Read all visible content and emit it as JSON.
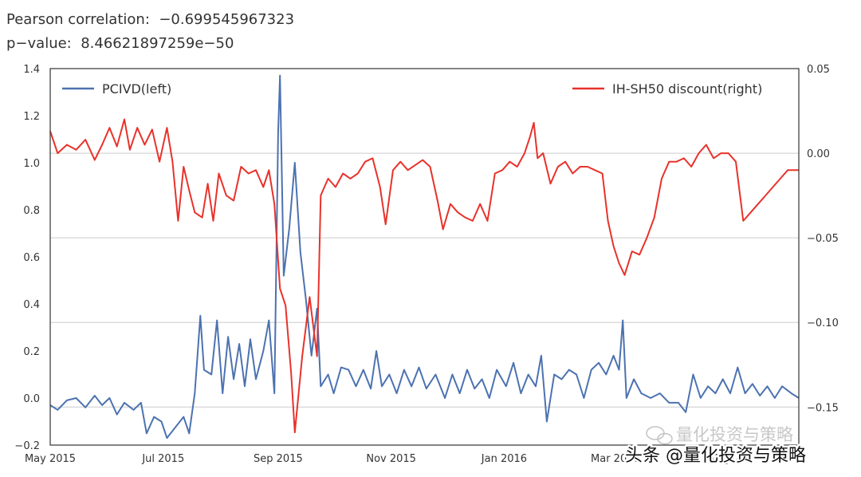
{
  "stats": {
    "pearson_label": "Pearson correlation:",
    "pearson_value": "−0.699545967323",
    "pvalue_label": "p−value:",
    "pvalue_value": "8.46621897259e−50"
  },
  "colors": {
    "left_series": "#4c72b0",
    "right_series": "#e8322b",
    "grid": "#cccccc",
    "axis": "#333333"
  },
  "watermark": {
    "text_light": "量化投资与策略",
    "text_dark": "头条 @量化投资与策略"
  },
  "chart_data": {
    "type": "line",
    "grid": "horizontal",
    "legend": [
      {
        "label": "PCIVD(left)",
        "placement": "top-left"
      },
      {
        "label": "IH-SH50 discount(right)",
        "placement": "top-right"
      }
    ],
    "x_range": [
      "2015-05-01",
      "2016-06-08"
    ],
    "x_ticks": [
      {
        "label": "May 2015",
        "date": "2015-05-01"
      },
      {
        "label": "Jul 2015",
        "date": "2015-07-01"
      },
      {
        "label": "Sep 2015",
        "date": "2015-09-01"
      },
      {
        "label": "Nov 2015",
        "date": "2015-11-01"
      },
      {
        "label": "Jan 2016",
        "date": "2016-01-01"
      },
      {
        "label": "Mar 2016",
        "date": "2016-03-01"
      },
      {
        "label": "May 20",
        "date": "2016-05-01"
      }
    ],
    "left_axis": {
      "ylim": [
        -0.2,
        1.4
      ],
      "ticks": [
        {
          "value": -0.2,
          "label": "−0.2"
        },
        {
          "value": 0.0,
          "label": "0.0"
        },
        {
          "value": 0.2,
          "label": "0.2"
        },
        {
          "value": 0.4,
          "label": "0.4"
        },
        {
          "value": 0.6,
          "label": "0.6"
        },
        {
          "value": 0.8,
          "label": "0.8"
        },
        {
          "value": 1.0,
          "label": "1.0"
        },
        {
          "value": 1.2,
          "label": "1.2"
        },
        {
          "value": 1.4,
          "label": "1.4"
        }
      ]
    },
    "right_axis": {
      "ylim": [
        -0.1725,
        0.05
      ],
      "ticks": [
        {
          "value": 0.05,
          "label": "0.05"
        },
        {
          "value": 0.0,
          "label": "0.00"
        },
        {
          "value": -0.05,
          "label": "−0.05"
        },
        {
          "value": -0.1,
          "label": "−0.10"
        },
        {
          "value": -0.15,
          "label": "−0.15"
        }
      ]
    },
    "series": [
      {
        "name": "PCIVD(left)",
        "axis": "left",
        "points": [
          [
            "2015-05-01",
            -0.03
          ],
          [
            "2015-05-05",
            -0.05
          ],
          [
            "2015-05-10",
            -0.01
          ],
          [
            "2015-05-15",
            0.0
          ],
          [
            "2015-05-20",
            -0.04
          ],
          [
            "2015-05-25",
            0.01
          ],
          [
            "2015-05-29",
            -0.03
          ],
          [
            "2015-06-02",
            0.0
          ],
          [
            "2015-06-06",
            -0.07
          ],
          [
            "2015-06-10",
            -0.02
          ],
          [
            "2015-06-15",
            -0.05
          ],
          [
            "2015-06-19",
            -0.02
          ],
          [
            "2015-06-22",
            -0.15
          ],
          [
            "2015-06-26",
            -0.08
          ],
          [
            "2015-06-30",
            -0.1
          ],
          [
            "2015-07-03",
            -0.17
          ],
          [
            "2015-07-08",
            -0.12
          ],
          [
            "2015-07-12",
            -0.08
          ],
          [
            "2015-07-15",
            -0.15
          ],
          [
            "2015-07-18",
            0.02
          ],
          [
            "2015-07-21",
            0.35
          ],
          [
            "2015-07-23",
            0.12
          ],
          [
            "2015-07-27",
            0.1
          ],
          [
            "2015-07-30",
            0.33
          ],
          [
            "2015-08-02",
            0.02
          ],
          [
            "2015-08-05",
            0.26
          ],
          [
            "2015-08-08",
            0.08
          ],
          [
            "2015-08-11",
            0.23
          ],
          [
            "2015-08-14",
            0.05
          ],
          [
            "2015-08-17",
            0.25
          ],
          [
            "2015-08-20",
            0.08
          ],
          [
            "2015-08-24",
            0.2
          ],
          [
            "2015-08-27",
            0.33
          ],
          [
            "2015-08-30",
            0.02
          ],
          [
            "2015-09-01",
            1.13
          ],
          [
            "2015-09-02",
            1.37
          ],
          [
            "2015-09-04",
            0.52
          ],
          [
            "2015-09-07",
            0.72
          ],
          [
            "2015-09-10",
            1.0
          ],
          [
            "2015-09-13",
            0.62
          ],
          [
            "2015-09-16",
            0.42
          ],
          [
            "2015-09-19",
            0.18
          ],
          [
            "2015-09-22",
            0.38
          ],
          [
            "2015-09-24",
            0.05
          ],
          [
            "2015-09-28",
            0.1
          ],
          [
            "2015-10-01",
            0.02
          ],
          [
            "2015-10-05",
            0.13
          ],
          [
            "2015-10-09",
            0.12
          ],
          [
            "2015-10-13",
            0.05
          ],
          [
            "2015-10-17",
            0.12
          ],
          [
            "2015-10-21",
            0.04
          ],
          [
            "2015-10-24",
            0.2
          ],
          [
            "2015-10-27",
            0.05
          ],
          [
            "2015-10-31",
            0.1
          ],
          [
            "2015-11-04",
            0.02
          ],
          [
            "2015-11-08",
            0.12
          ],
          [
            "2015-11-12",
            0.05
          ],
          [
            "2015-11-16",
            0.13
          ],
          [
            "2015-11-20",
            0.04
          ],
          [
            "2015-11-25",
            0.1
          ],
          [
            "2015-11-30",
            0.0
          ],
          [
            "2015-12-04",
            0.1
          ],
          [
            "2015-12-08",
            0.02
          ],
          [
            "2015-12-12",
            0.12
          ],
          [
            "2015-12-16",
            0.04
          ],
          [
            "2015-12-20",
            0.08
          ],
          [
            "2015-12-24",
            0.0
          ],
          [
            "2015-12-28",
            0.12
          ],
          [
            "2016-01-02",
            0.05
          ],
          [
            "2016-01-06",
            0.15
          ],
          [
            "2016-01-10",
            0.02
          ],
          [
            "2016-01-14",
            0.1
          ],
          [
            "2016-01-18",
            0.05
          ],
          [
            "2016-01-21",
            0.18
          ],
          [
            "2016-01-24",
            -0.1
          ],
          [
            "2016-01-28",
            0.1
          ],
          [
            "2016-02-01",
            0.08
          ],
          [
            "2016-02-05",
            0.12
          ],
          [
            "2016-02-09",
            0.1
          ],
          [
            "2016-02-13",
            0.0
          ],
          [
            "2016-02-17",
            0.12
          ],
          [
            "2016-02-21",
            0.15
          ],
          [
            "2016-02-25",
            0.1
          ],
          [
            "2016-02-29",
            0.18
          ],
          [
            "2016-03-03",
            0.12
          ],
          [
            "2016-03-05",
            0.33
          ],
          [
            "2016-03-07",
            0.0
          ],
          [
            "2016-03-11",
            0.08
          ],
          [
            "2016-03-15",
            0.02
          ],
          [
            "2016-03-20",
            0.0
          ],
          [
            "2016-03-25",
            0.02
          ],
          [
            "2016-03-30",
            -0.02
          ],
          [
            "2016-04-04",
            -0.02
          ],
          [
            "2016-04-08",
            -0.06
          ],
          [
            "2016-04-12",
            0.1
          ],
          [
            "2016-04-16",
            0.0
          ],
          [
            "2016-04-20",
            0.05
          ],
          [
            "2016-04-24",
            0.02
          ],
          [
            "2016-04-28",
            0.08
          ],
          [
            "2016-05-02",
            0.02
          ],
          [
            "2016-05-06",
            0.13
          ],
          [
            "2016-05-10",
            0.02
          ],
          [
            "2016-05-14",
            0.06
          ],
          [
            "2016-05-18",
            0.01
          ],
          [
            "2016-05-22",
            0.05
          ],
          [
            "2016-05-26",
            0.0
          ],
          [
            "2016-05-30",
            0.05
          ],
          [
            "2016-06-04",
            0.02
          ],
          [
            "2016-06-08",
            0.0
          ]
        ]
      },
      {
        "name": "IH-SH50 discount(right)",
        "axis": "right",
        "points": [
          [
            "2015-05-01",
            0.013
          ],
          [
            "2015-05-05",
            0.0
          ],
          [
            "2015-05-10",
            0.005
          ],
          [
            "2015-05-15",
            0.002
          ],
          [
            "2015-05-20",
            0.008
          ],
          [
            "2015-05-25",
            -0.004
          ],
          [
            "2015-05-29",
            0.005
          ],
          [
            "2015-06-02",
            0.015
          ],
          [
            "2015-06-06",
            0.004
          ],
          [
            "2015-06-10",
            0.02
          ],
          [
            "2015-06-13",
            0.002
          ],
          [
            "2015-06-17",
            0.015
          ],
          [
            "2015-06-21",
            0.005
          ],
          [
            "2015-06-25",
            0.014
          ],
          [
            "2015-06-29",
            -0.005
          ],
          [
            "2015-07-03",
            0.015
          ],
          [
            "2015-07-06",
            -0.005
          ],
          [
            "2015-07-09",
            -0.04
          ],
          [
            "2015-07-12",
            -0.008
          ],
          [
            "2015-07-15",
            -0.022
          ],
          [
            "2015-07-18",
            -0.035
          ],
          [
            "2015-07-22",
            -0.038
          ],
          [
            "2015-07-25",
            -0.018
          ],
          [
            "2015-07-28",
            -0.04
          ],
          [
            "2015-07-31",
            -0.012
          ],
          [
            "2015-08-04",
            -0.025
          ],
          [
            "2015-08-08",
            -0.028
          ],
          [
            "2015-08-12",
            -0.008
          ],
          [
            "2015-08-16",
            -0.012
          ],
          [
            "2015-08-20",
            -0.01
          ],
          [
            "2015-08-24",
            -0.02
          ],
          [
            "2015-08-27",
            -0.01
          ],
          [
            "2015-08-30",
            -0.03
          ],
          [
            "2015-09-02",
            -0.08
          ],
          [
            "2015-09-05",
            -0.09
          ],
          [
            "2015-09-08",
            -0.13
          ],
          [
            "2015-09-10",
            -0.165
          ],
          [
            "2015-09-14",
            -0.12
          ],
          [
            "2015-09-18",
            -0.085
          ],
          [
            "2015-09-22",
            -0.12
          ],
          [
            "2015-09-24",
            -0.025
          ],
          [
            "2015-09-28",
            -0.015
          ],
          [
            "2015-10-02",
            -0.02
          ],
          [
            "2015-10-06",
            -0.012
          ],
          [
            "2015-10-10",
            -0.015
          ],
          [
            "2015-10-14",
            -0.012
          ],
          [
            "2015-10-18",
            -0.005
          ],
          [
            "2015-10-22",
            -0.003
          ],
          [
            "2015-10-26",
            -0.02
          ],
          [
            "2015-10-29",
            -0.042
          ],
          [
            "2015-11-02",
            -0.01
          ],
          [
            "2015-11-06",
            -0.005
          ],
          [
            "2015-11-10",
            -0.01
          ],
          [
            "2015-11-14",
            -0.007
          ],
          [
            "2015-11-18",
            -0.004
          ],
          [
            "2015-11-22",
            -0.008
          ],
          [
            "2015-11-26",
            -0.028
          ],
          [
            "2015-11-29",
            -0.045
          ],
          [
            "2015-12-03",
            -0.03
          ],
          [
            "2015-12-07",
            -0.035
          ],
          [
            "2015-12-11",
            -0.038
          ],
          [
            "2015-12-15",
            -0.04
          ],
          [
            "2015-12-19",
            -0.03
          ],
          [
            "2015-12-23",
            -0.04
          ],
          [
            "2015-12-27",
            -0.012
          ],
          [
            "2015-12-31",
            -0.01
          ],
          [
            "2016-01-04",
            -0.005
          ],
          [
            "2016-01-08",
            -0.008
          ],
          [
            "2016-01-12",
            0.0
          ],
          [
            "2016-01-15",
            0.01
          ],
          [
            "2016-01-17",
            0.018
          ],
          [
            "2016-01-19",
            -0.003
          ],
          [
            "2016-01-22",
            0.0
          ],
          [
            "2016-01-26",
            -0.018
          ],
          [
            "2016-01-30",
            -0.008
          ],
          [
            "2016-02-03",
            -0.005
          ],
          [
            "2016-02-07",
            -0.012
          ],
          [
            "2016-02-11",
            -0.008
          ],
          [
            "2016-02-15",
            -0.008
          ],
          [
            "2016-02-19",
            -0.01
          ],
          [
            "2016-02-23",
            -0.012
          ],
          [
            "2016-02-26",
            -0.04
          ],
          [
            "2016-02-29",
            -0.055
          ],
          [
            "2016-03-03",
            -0.065
          ],
          [
            "2016-03-06",
            -0.072
          ],
          [
            "2016-03-10",
            -0.058
          ],
          [
            "2016-03-14",
            -0.06
          ],
          [
            "2016-03-18",
            -0.05
          ],
          [
            "2016-03-22",
            -0.038
          ],
          [
            "2016-03-26",
            -0.015
          ],
          [
            "2016-03-30",
            -0.005
          ],
          [
            "2016-04-03",
            -0.005
          ],
          [
            "2016-04-07",
            -0.003
          ],
          [
            "2016-04-11",
            -0.008
          ],
          [
            "2016-04-15",
            0.0
          ],
          [
            "2016-04-19",
            0.005
          ],
          [
            "2016-04-23",
            -0.003
          ],
          [
            "2016-04-27",
            0.0
          ],
          [
            "2016-05-01",
            0.0
          ],
          [
            "2016-05-05",
            -0.005
          ],
          [
            "2016-05-09",
            -0.04
          ],
          [
            "2016-05-13",
            -0.035
          ],
          [
            "2016-05-17",
            -0.03
          ],
          [
            "2016-05-21",
            -0.025
          ],
          [
            "2016-05-25",
            -0.02
          ],
          [
            "2016-05-29",
            -0.015
          ],
          [
            "2016-06-02",
            -0.01
          ],
          [
            "2016-06-08",
            -0.01
          ]
        ]
      }
    ]
  }
}
